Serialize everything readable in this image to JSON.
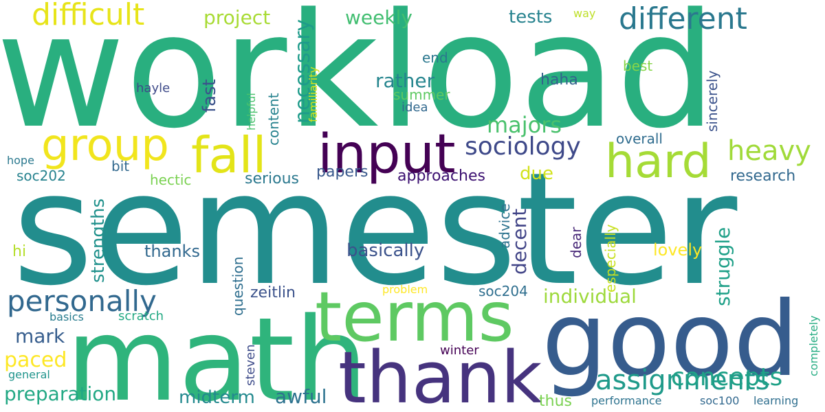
{
  "words": [
    {
      "text": "workload",
      "color": "#29af7f"
    },
    {
      "text": "semester",
      "color": "#228d8d"
    },
    {
      "text": "math",
      "color": "#2fb47c"
    },
    {
      "text": "good",
      "color": "#365c8d"
    },
    {
      "text": "terms",
      "color": "#5ec962"
    },
    {
      "text": "thank",
      "color": "#46337e"
    },
    {
      "text": "input",
      "color": "#440154"
    },
    {
      "text": "hard",
      "color": "#a5db36"
    },
    {
      "text": "fall",
      "color": "#e3e418"
    },
    {
      "text": "group",
      "color": "#f1e51d"
    },
    {
      "text": "different",
      "color": "#2a788e"
    },
    {
      "text": "difficult",
      "color": "#e7e419"
    },
    {
      "text": "personally",
      "color": "#31688e"
    },
    {
      "text": "assignments",
      "color": "#1f9a8a"
    },
    {
      "text": "heavy",
      "color": "#a0da39"
    },
    {
      "text": "sociology",
      "color": "#3e4989"
    },
    {
      "text": "concepts",
      "color": "#1fa187"
    },
    {
      "text": "majors",
      "color": "#4ac16d"
    },
    {
      "text": "project",
      "color": "#a8db34"
    },
    {
      "text": "weekly",
      "color": "#42be71"
    },
    {
      "text": "tests",
      "color": "#26828e"
    },
    {
      "text": "way",
      "color": "#bddf26"
    },
    {
      "text": "necessary",
      "color": "#1e9b8a"
    },
    {
      "text": "rather",
      "color": "#25858e"
    },
    {
      "text": "fast",
      "color": "#3b528b"
    },
    {
      "text": "preparation",
      "color": "#22a884"
    },
    {
      "text": "midterm",
      "color": "#23898e"
    },
    {
      "text": "awful",
      "color": "#2c728e"
    },
    {
      "text": "paced",
      "color": "#fde725"
    },
    {
      "text": "mark",
      "color": "#365d8d"
    },
    {
      "text": "individual",
      "color": "#9dd93b"
    },
    {
      "text": "strengths",
      "color": "#21918c"
    },
    {
      "text": "struggle",
      "color": "#1fa088"
    },
    {
      "text": "basically",
      "color": "#3b528b"
    },
    {
      "text": "decent",
      "color": "#414487"
    },
    {
      "text": "due",
      "color": "#d2e21b"
    },
    {
      "text": "approaches",
      "color": "#3b0f70"
    },
    {
      "text": "papers",
      "color": "#38588c"
    },
    {
      "text": "serious",
      "color": "#2a788e"
    },
    {
      "text": "hectic",
      "color": "#7ad151"
    },
    {
      "text": "bit",
      "color": "#31688e"
    },
    {
      "text": "soc202",
      "color": "#26828e"
    },
    {
      "text": "hope",
      "color": "#2a788e"
    },
    {
      "text": "hi",
      "color": "#b5de2b"
    },
    {
      "text": "thanks",
      "color": "#31688e"
    },
    {
      "text": "research",
      "color": "#31688e"
    },
    {
      "text": "lovely",
      "color": "#fde725"
    },
    {
      "text": "especially",
      "color": "#c8e020"
    },
    {
      "text": "dear",
      "color": "#482878"
    },
    {
      "text": "advice",
      "color": "#2c728e"
    },
    {
      "text": "soc204",
      "color": "#2e6e8e"
    },
    {
      "text": "zeitlin",
      "color": "#3b528b"
    },
    {
      "text": "question",
      "color": "#2e6e8e"
    },
    {
      "text": "problem",
      "color": "#fde725"
    },
    {
      "text": "basics",
      "color": "#287c8e"
    },
    {
      "text": "scratch",
      "color": "#23a983"
    },
    {
      "text": "general",
      "color": "#1f948c"
    },
    {
      "text": "steven",
      "color": "#3e4c8a"
    },
    {
      "text": "winter",
      "color": "#440154"
    },
    {
      "text": "thus",
      "color": "#7ad151"
    },
    {
      "text": "performance",
      "color": "#2c728e"
    },
    {
      "text": "soc100",
      "color": "#31688e"
    },
    {
      "text": "learning",
      "color": "#2e6e8e"
    },
    {
      "text": "completely",
      "color": "#25ac82"
    },
    {
      "text": "overall",
      "color": "#2f6c8e"
    },
    {
      "text": "sincerely",
      "color": "#3b528b"
    },
    {
      "text": "best",
      "color": "#86d549"
    },
    {
      "text": "end",
      "color": "#2a778e"
    },
    {
      "text": "haha",
      "color": "#33638d"
    },
    {
      "text": "summer",
      "color": "#5ec962"
    },
    {
      "text": "idea",
      "color": "#31688e"
    },
    {
      "text": "content",
      "color": "#26828e"
    },
    {
      "text": "helpful",
      "color": "#4ac16d"
    },
    {
      "text": "familiarity",
      "color": "#d8e219"
    },
    {
      "text": "hayle",
      "color": "#3e4a89"
    }
  ]
}
